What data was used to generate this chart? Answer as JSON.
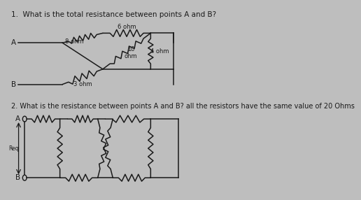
{
  "title1": "1.  What is the total resistance between points A and B?",
  "title2": "2. What is the resistance between points A and B? all the resistors have the same value of 20 Ohms",
  "bg_color": "#bebebe",
  "line_color": "#1a1a1a",
  "text_color": "#1a1a1a",
  "font_size_title": 7.5,
  "font_size_label": 7.0,
  "font_size_AB": 7.5,
  "font_size_res": 6.0
}
